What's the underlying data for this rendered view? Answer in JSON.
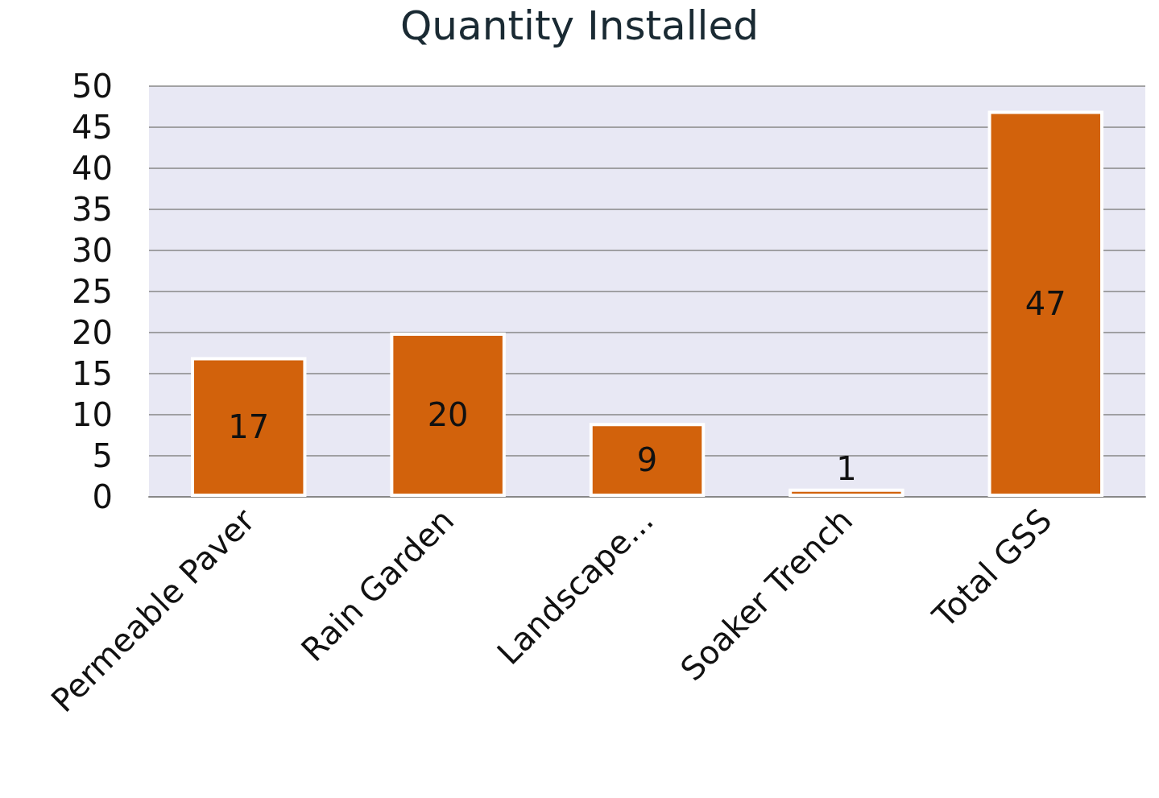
{
  "chart_data": {
    "type": "bar",
    "title": "Quantity Installed",
    "categories": [
      "Permeable Paver",
      "Rain Garden",
      "Landscape...",
      "Soaker Trench",
      "Total GSS"
    ],
    "values": [
      17,
      20,
      9,
      1,
      47
    ],
    "color": "#d2620c",
    "ylim": [
      0,
      50
    ],
    "yticks": [
      0,
      5,
      10,
      15,
      20,
      25,
      30,
      35,
      40,
      45,
      50
    ],
    "grid": "y",
    "data_labels": true
  }
}
